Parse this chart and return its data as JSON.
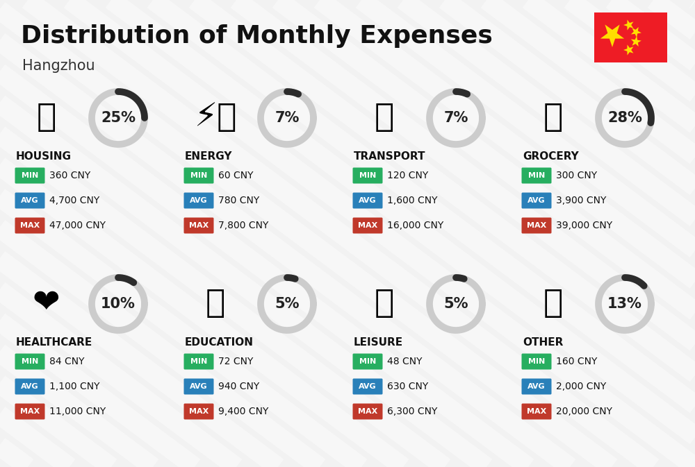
{
  "title": "Distribution of Monthly Expenses",
  "subtitle": "Hangzhou",
  "background_color": "#f2f2f2",
  "categories": [
    {
      "name": "HOUSING",
      "pct": 25,
      "min_val": "360 CNY",
      "avg_val": "4,700 CNY",
      "max_val": "47,000 CNY",
      "icon": "🏗️",
      "row": 0,
      "col": 0
    },
    {
      "name": "ENERGY",
      "pct": 7,
      "min_val": "60 CNY",
      "avg_val": "780 CNY",
      "max_val": "7,800 CNY",
      "icon": "⚡🏠",
      "row": 0,
      "col": 1
    },
    {
      "name": "TRANSPORT",
      "pct": 7,
      "min_val": "120 CNY",
      "avg_val": "1,600 CNY",
      "max_val": "16,000 CNY",
      "icon": "🚌",
      "row": 0,
      "col": 2
    },
    {
      "name": "GROCERY",
      "pct": 28,
      "min_val": "300 CNY",
      "avg_val": "3,900 CNY",
      "max_val": "39,000 CNY",
      "icon": "🛒",
      "row": 0,
      "col": 3
    },
    {
      "name": "HEALTHCARE",
      "pct": 10,
      "min_val": "84 CNY",
      "avg_val": "1,100 CNY",
      "max_val": "11,000 CNY",
      "icon": "❤️",
      "row": 1,
      "col": 0
    },
    {
      "name": "EDUCATION",
      "pct": 5,
      "min_val": "72 CNY",
      "avg_val": "940 CNY",
      "max_val": "9,400 CNY",
      "icon": "🎓",
      "row": 1,
      "col": 1
    },
    {
      "name": "LEISURE",
      "pct": 5,
      "min_val": "48 CNY",
      "avg_val": "630 CNY",
      "max_val": "6,300 CNY",
      "icon": "🛍️",
      "row": 1,
      "col": 2
    },
    {
      "name": "OTHER",
      "pct": 13,
      "min_val": "160 CNY",
      "avg_val": "2,000 CNY",
      "max_val": "20,000 CNY",
      "icon": "👛",
      "row": 1,
      "col": 3
    }
  ],
  "min_color": "#27ae60",
  "avg_color": "#2980b9",
  "max_color": "#c0392b",
  "arc_dark": "#2c2c2c",
  "arc_light": "#cccccc",
  "title_fontsize": 26,
  "subtitle_fontsize": 15,
  "category_fontsize": 11,
  "pct_fontsize": 15,
  "value_fontsize": 10,
  "badge_fontsize": 8
}
